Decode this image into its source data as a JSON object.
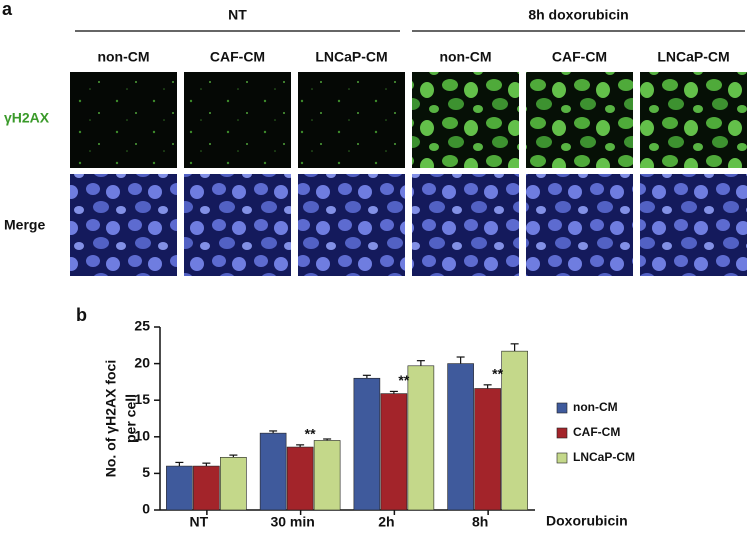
{
  "panel_a": {
    "label": "a",
    "groups": [
      "NT",
      "8h doxorubicin"
    ],
    "columns": [
      "non-CM",
      "CAF-CM",
      "LNCaP-CM",
      "non-CM",
      "CAF-CM",
      "LNCaP-CM"
    ],
    "rows": [
      "γH2AX",
      "Merge"
    ]
  },
  "chart_data": {
    "type": "bar",
    "panel_label": "b",
    "ylabel": [
      "No. of γH2AX foci",
      "per cell"
    ],
    "xlabel": "Doxorubicin",
    "categories": [
      "NT",
      "30 min",
      "2h",
      "8h"
    ],
    "series": [
      {
        "name": "non-CM",
        "color": "#3f5a9c",
        "values": [
          6,
          10.5,
          18,
          20
        ],
        "errors": [
          0.5,
          0.3,
          0.4,
          0.9
        ]
      },
      {
        "name": "CAF-CM",
        "color": "#a3242a",
        "values": [
          6,
          8.6,
          15.9,
          16.6
        ],
        "errors": [
          0.4,
          0.3,
          0.3,
          0.5
        ]
      },
      {
        "name": "LNCaP-CM",
        "color": "#c4d88a",
        "values": [
          7.2,
          9.5,
          19.7,
          21.7
        ],
        "errors": [
          0.3,
          0.2,
          0.7,
          1.0
        ]
      }
    ],
    "annotations": [
      {
        "text": "**",
        "category": "30 min",
        "series": "CAF-CM"
      },
      {
        "text": "**",
        "category": "2h",
        "series": "CAF-CM"
      },
      {
        "text": "**",
        "category": "8h",
        "series": "CAF-CM"
      }
    ],
    "ylim": [
      0,
      25
    ],
    "yticks": [
      0,
      5,
      10,
      15,
      20,
      25
    ],
    "legend": "right"
  }
}
